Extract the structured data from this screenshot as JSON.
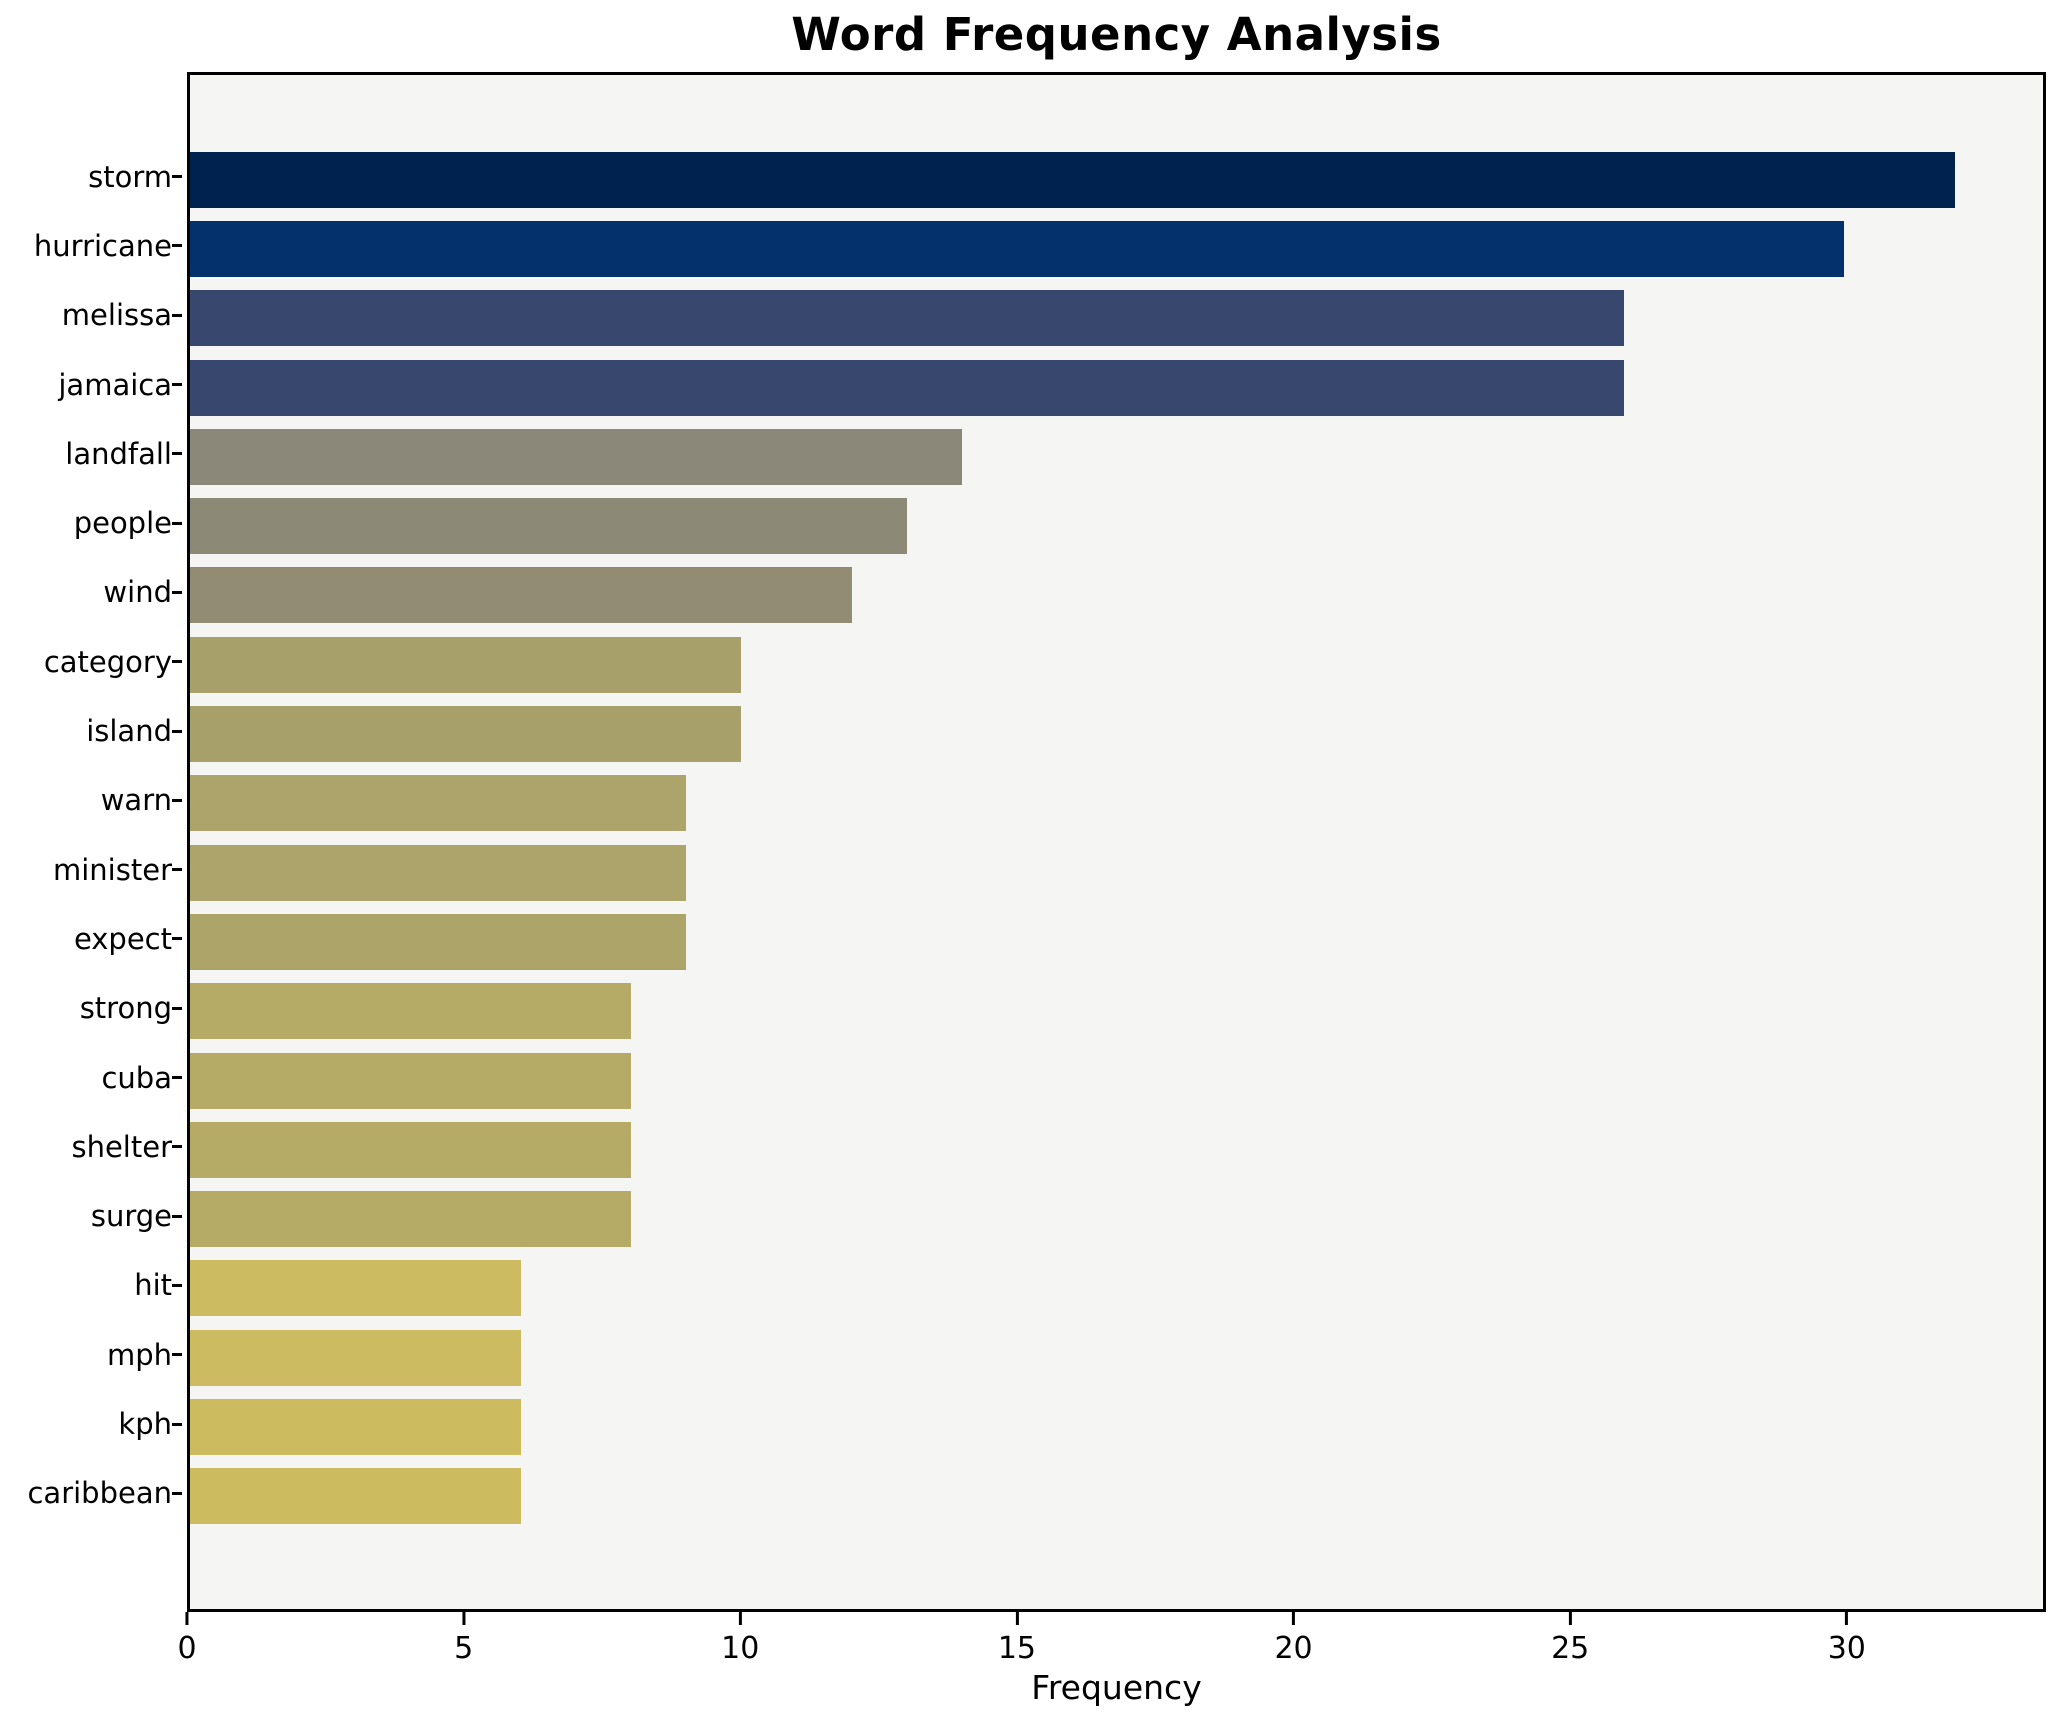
{
  "chart_data": {
    "type": "bar",
    "orientation": "horizontal",
    "title": "Word Frequency Analysis",
    "xlabel": "Frequency",
    "ylabel": "",
    "categories": [
      "storm",
      "hurricane",
      "melissa",
      "jamaica",
      "landfall",
      "people",
      "wind",
      "category",
      "island",
      "warn",
      "minister",
      "expect",
      "strong",
      "cuba",
      "shelter",
      "surge",
      "hit",
      "mph",
      "kph",
      "caribbean"
    ],
    "values": [
      32,
      30,
      26,
      26,
      14,
      13,
      12,
      10,
      10,
      9,
      9,
      9,
      8,
      8,
      8,
      8,
      6,
      6,
      6,
      6
    ],
    "bar_colors": [
      "#00224e",
      "#04306c",
      "#37476d",
      "#37476d",
      "#8b8779",
      "#8d8977",
      "#928c75",
      "#a7a06b",
      "#a7a06b",
      "#aca46a",
      "#aca46a",
      "#ada469",
      "#b5ab67",
      "#b5ab67",
      "#b5ab67",
      "#b5ab66",
      "#ccbb60",
      "#ccbb60",
      "#ccbb5f",
      "#ccbb5f"
    ],
    "xticks": [
      0,
      5,
      10,
      15,
      20,
      25,
      30
    ],
    "xlim": [
      0,
      33.6
    ],
    "grid": false,
    "legend": null,
    "plot_bg": "#f5f5f4",
    "fig_bg": "#ffffff"
  }
}
